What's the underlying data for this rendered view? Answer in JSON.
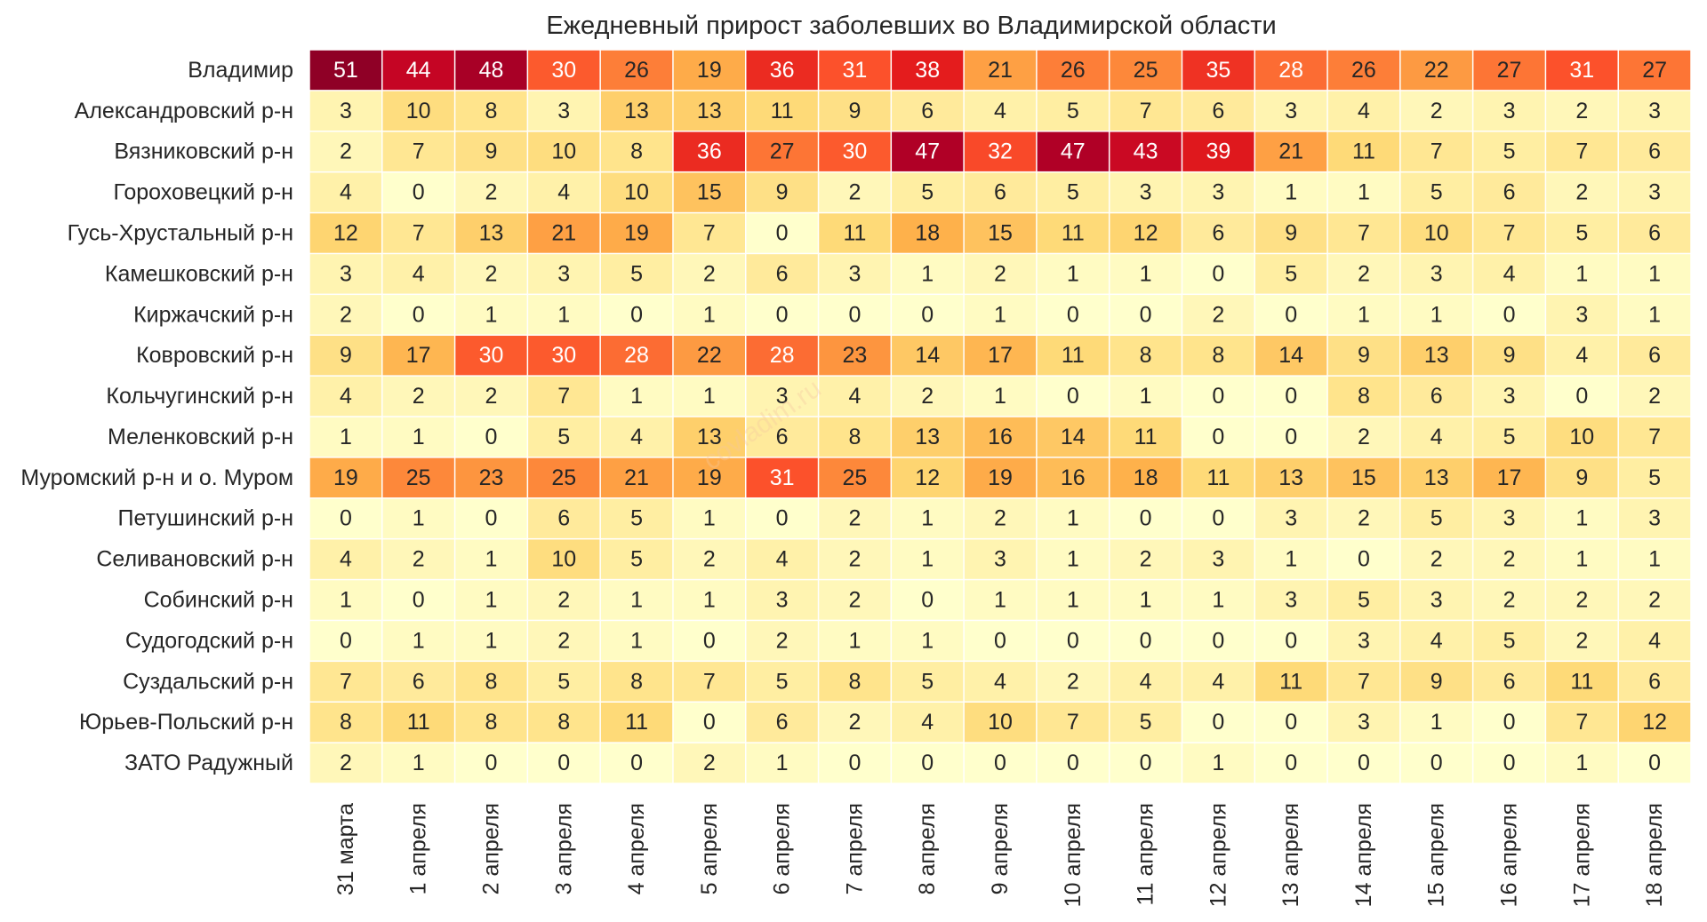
{
  "chart_data": {
    "type": "heatmap",
    "title": "Ежедневный прирост заболевших во Владимирской области",
    "watermark": "covladim.ru",
    "columns": [
      "31 марта",
      "1 апреля",
      "2 апреля",
      "3 апреля",
      "4 апреля",
      "5 апреля",
      "6 апреля",
      "7 апреля",
      "8 апреля",
      "9 апреля",
      "10 апреля",
      "11 апреля",
      "12 апреля",
      "13 апреля",
      "14 апреля",
      "15 апреля",
      "16 апреля",
      "17 апреля",
      "18 апреля"
    ],
    "rows": [
      {
        "name": "Владимир",
        "values": [
          51,
          44,
          48,
          30,
          26,
          19,
          36,
          31,
          38,
          21,
          26,
          25,
          35,
          28,
          26,
          22,
          27,
          31,
          27
        ]
      },
      {
        "name": "Александровский р-н",
        "values": [
          3,
          10,
          8,
          3,
          13,
          13,
          11,
          9,
          6,
          4,
          5,
          7,
          6,
          3,
          4,
          2,
          3,
          2,
          3
        ]
      },
      {
        "name": "Вязниковский р-н",
        "values": [
          2,
          7,
          9,
          10,
          8,
          36,
          27,
          30,
          47,
          32,
          47,
          43,
          39,
          21,
          11,
          7,
          5,
          7,
          6
        ]
      },
      {
        "name": "Гороховецкий р-н",
        "values": [
          4,
          0,
          2,
          4,
          10,
          15,
          9,
          2,
          5,
          6,
          5,
          3,
          3,
          1,
          1,
          5,
          6,
          2,
          3
        ]
      },
      {
        "name": "Гусь-Хрустальный р-н",
        "values": [
          12,
          7,
          13,
          21,
          19,
          7,
          0,
          11,
          18,
          15,
          11,
          12,
          6,
          9,
          7,
          10,
          7,
          5,
          6
        ]
      },
      {
        "name": "Камешковский р-н",
        "values": [
          3,
          4,
          2,
          3,
          5,
          2,
          6,
          3,
          1,
          2,
          1,
          1,
          0,
          5,
          2,
          3,
          4,
          1,
          1
        ]
      },
      {
        "name": "Киржачский р-н",
        "values": [
          2,
          0,
          1,
          1,
          0,
          1,
          0,
          0,
          0,
          1,
          0,
          0,
          2,
          0,
          1,
          1,
          0,
          3,
          1
        ]
      },
      {
        "name": "Ковровский р-н",
        "values": [
          9,
          17,
          30,
          30,
          28,
          22,
          28,
          23,
          14,
          17,
          11,
          8,
          8,
          14,
          9,
          13,
          9,
          4,
          6
        ]
      },
      {
        "name": "Кольчугинский р-н",
        "values": [
          4,
          2,
          2,
          7,
          1,
          1,
          3,
          4,
          2,
          1,
          0,
          1,
          0,
          0,
          8,
          6,
          3,
          0,
          2
        ]
      },
      {
        "name": "Меленковский р-н",
        "values": [
          1,
          1,
          0,
          5,
          4,
          13,
          6,
          8,
          13,
          16,
          14,
          11,
          0,
          0,
          2,
          4,
          5,
          10,
          7
        ]
      },
      {
        "name": "Муромский р-н и о. Муром",
        "values": [
          19,
          25,
          23,
          25,
          21,
          19,
          31,
          25,
          12,
          19,
          16,
          18,
          11,
          13,
          15,
          13,
          17,
          9,
          5
        ]
      },
      {
        "name": "Петушинский р-н",
        "values": [
          0,
          1,
          0,
          6,
          5,
          1,
          0,
          2,
          1,
          2,
          1,
          0,
          0,
          3,
          2,
          5,
          3,
          1,
          3
        ]
      },
      {
        "name": "Селивановский р-н",
        "values": [
          4,
          2,
          1,
          10,
          5,
          2,
          4,
          2,
          1,
          3,
          1,
          2,
          3,
          1,
          0,
          2,
          2,
          1,
          1
        ]
      },
      {
        "name": "Собинский р-н",
        "values": [
          1,
          0,
          1,
          2,
          1,
          1,
          3,
          2,
          0,
          1,
          1,
          1,
          1,
          3,
          5,
          3,
          2,
          2,
          2
        ]
      },
      {
        "name": "Судогодский р-н",
        "values": [
          0,
          1,
          1,
          2,
          1,
          0,
          2,
          1,
          1,
          0,
          0,
          0,
          0,
          0,
          3,
          4,
          5,
          2,
          4
        ]
      },
      {
        "name": "Суздальский р-н",
        "values": [
          7,
          6,
          8,
          5,
          8,
          7,
          5,
          8,
          5,
          4,
          2,
          4,
          4,
          11,
          7,
          9,
          6,
          11,
          6
        ]
      },
      {
        "name": "Юрьев-Польский р-н",
        "values": [
          8,
          11,
          8,
          8,
          11,
          0,
          6,
          2,
          4,
          10,
          7,
          5,
          0,
          0,
          3,
          1,
          0,
          7,
          12
        ]
      },
      {
        "name": "ЗАТО Радужный",
        "values": [
          2,
          1,
          0,
          0,
          0,
          2,
          1,
          0,
          0,
          0,
          0,
          0,
          1,
          0,
          0,
          0,
          0,
          1,
          0
        ]
      }
    ],
    "colormap": "YlOrRd",
    "vmin": 0,
    "vmax": 51,
    "colorbar": false,
    "text_color_light": "#ffffff",
    "text_color_dark": "#262626"
  }
}
